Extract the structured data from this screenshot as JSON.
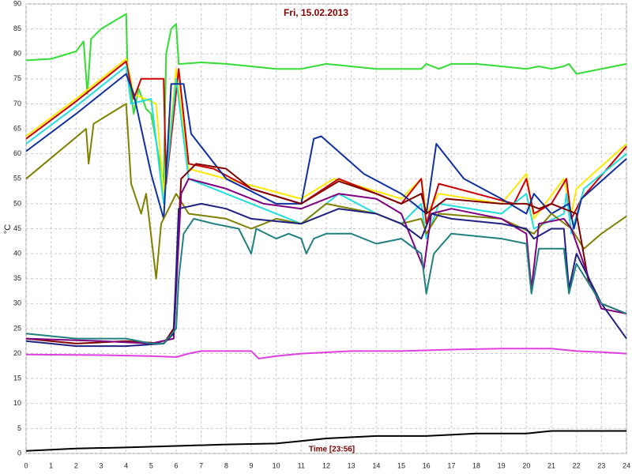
{
  "chart_data": {
    "type": "line",
    "title": "Fri, 15.02.2013",
    "x_label": "Time [23:56]",
    "y_label": "°C",
    "xlim": [
      0,
      24
    ],
    "ylim": [
      0,
      90
    ],
    "xticks": [
      0,
      1,
      2,
      3,
      4,
      5,
      6,
      7,
      8,
      9,
      10,
      11,
      12,
      13,
      14,
      15,
      16,
      17,
      18,
      19,
      20,
      21,
      22,
      23,
      24
    ],
    "yticks": [
      0,
      5,
      10,
      15,
      20,
      25,
      30,
      35,
      40,
      45,
      50,
      55,
      60,
      65,
      70,
      75,
      80,
      85,
      90
    ],
    "grid": true,
    "series": [
      {
        "color": "#33dd33",
        "x": [
          0,
          1,
          2,
          2.3,
          2.45,
          2.6,
          3,
          4,
          4.05,
          4.3,
          4.5,
          4.8,
          5,
          5.5,
          5.6,
          5.8,
          6,
          6.1,
          6.2,
          7,
          8,
          9,
          10,
          11,
          12,
          13,
          14,
          15,
          15.8,
          16,
          16.5,
          17,
          18,
          19,
          20,
          20.5,
          21,
          21.5,
          21.7,
          22,
          23,
          24
        ],
        "values": [
          78.7,
          79,
          80.5,
          82.5,
          72,
          83,
          85,
          88,
          78,
          68,
          73,
          69,
          68,
          54,
          80,
          85,
          86,
          78,
          78,
          78.3,
          78,
          77.5,
          77,
          77,
          78,
          77.5,
          77,
          77,
          77,
          78,
          77,
          78,
          78,
          77.5,
          77,
          77.5,
          77,
          77.5,
          78,
          76,
          77,
          78
        ]
      },
      {
        "color": "#ffe800",
        "x": [
          0,
          2,
          4,
          4.3,
          5.2,
          5.5,
          6,
          6.5,
          8,
          11,
          12.3,
          15,
          15.8,
          16,
          16.5,
          19,
          20,
          20.3,
          21.5,
          21.8,
          22,
          24
        ],
        "values": [
          63.5,
          71,
          79,
          72,
          70,
          52,
          77,
          57,
          55,
          51,
          55,
          51,
          55,
          48,
          52,
          50,
          56,
          47,
          55,
          48,
          53,
          62
        ]
      },
      {
        "color": "#cc0000",
        "x": [
          0,
          2,
          4,
          4.3,
          4.6,
          5.5,
          5.6,
          6.1,
          6.5,
          7.5,
          9,
          11,
          12.5,
          14,
          15,
          15.8,
          16,
          16.5,
          18,
          19.5,
          20,
          20.3,
          21,
          21.6,
          21.8,
          22.2,
          24
        ],
        "values": [
          63,
          70.5,
          78.5,
          71,
          75,
          75,
          54,
          77,
          58,
          57,
          53,
          50,
          55,
          52,
          50,
          55,
          46,
          54,
          52,
          50,
          55,
          48,
          50,
          55,
          47,
          51,
          61.5
        ]
      },
      {
        "color": "#22dddd",
        "x": [
          0,
          2,
          4,
          4.2,
          5,
          5.5,
          6,
          6.5,
          7.5,
          9.5,
          11,
          12.5,
          14,
          15,
          15.8,
          16,
          16.5,
          19,
          20,
          20.3,
          21.5,
          21.6,
          21.8,
          22.3,
          24
        ],
        "values": [
          62,
          69.5,
          77.5,
          70,
          71,
          50,
          75,
          55,
          53,
          49,
          46,
          52,
          48,
          46,
          50,
          43,
          50,
          48,
          52,
          45,
          48,
          52,
          44,
          53,
          60
        ]
      },
      {
        "color": "#1030a0",
        "x": [
          0,
          2,
          4,
          4.3,
          5,
          5.5,
          5.8,
          6.3,
          6.6,
          8,
          10,
          11,
          11.5,
          11.8,
          13.5,
          15,
          16,
          16.4,
          17.5,
          19,
          20,
          20.3,
          21,
          21.7,
          21.9,
          22.2,
          24
        ],
        "values": [
          60.5,
          68,
          76,
          72,
          56,
          47,
          74,
          74,
          64,
          55,
          50,
          50,
          63,
          63.5,
          56,
          52,
          48,
          62,
          55,
          51,
          48,
          52,
          48,
          50,
          45,
          51,
          59
        ]
      },
      {
        "color": "#808000",
        "x": [
          0,
          2.4,
          2.5,
          2.7,
          4,
          4.2,
          4.6,
          4.8,
          5.2,
          5.4,
          6,
          6.5,
          8,
          9,
          10,
          11,
          12,
          14,
          15,
          15.8,
          16,
          16.5,
          19,
          20.3,
          21,
          21.8,
          22.3,
          23,
          24
        ],
        "values": [
          55,
          65,
          58,
          66,
          70,
          54,
          48,
          52,
          35,
          46,
          52,
          48,
          47,
          45,
          47,
          46,
          50,
          48,
          46,
          47,
          44,
          48,
          47,
          44,
          48,
          45,
          41,
          44,
          47.5
        ]
      },
      {
        "color": "#800000",
        "x": [
          0,
          2,
          4,
          5.5,
          5.9,
          6.2,
          6.8,
          8,
          9,
          11,
          12.5,
          14,
          15,
          15.8,
          16,
          16.8,
          19,
          20,
          20.5,
          21,
          22,
          22.5,
          23,
          24
        ],
        "values": [
          23,
          22,
          22.5,
          22,
          25,
          55,
          58,
          57,
          53,
          50,
          54.5,
          52,
          50,
          52,
          48,
          51,
          50,
          50,
          49,
          50,
          48,
          34,
          30,
          28
        ]
      },
      {
        "color": "#800080",
        "x": [
          0,
          3,
          5,
          5.9,
          6.2,
          6.5,
          8,
          9.5,
          11,
          12.5,
          14,
          15,
          15.9,
          16.2,
          17,
          19,
          20,
          20.2,
          20.5,
          21.5,
          21.8,
          22.5,
          23,
          24
        ],
        "values": [
          23,
          22.5,
          22,
          23,
          52,
          55,
          53,
          50,
          49,
          52,
          51,
          48,
          37,
          48,
          49,
          47,
          44,
          33,
          46,
          47,
          45,
          35,
          29,
          28
        ]
      },
      {
        "color": "#202080",
        "x": [
          0,
          2,
          4,
          5.5,
          5.9,
          6.1,
          7,
          8,
          9,
          11,
          12.5,
          14,
          15,
          15.8,
          16.2,
          17,
          19,
          20,
          20.3,
          21,
          21.5,
          21.7,
          22,
          23,
          24
        ],
        "values": [
          22.5,
          21.5,
          21.5,
          22,
          24,
          49,
          50,
          49,
          47,
          46,
          49,
          48,
          46,
          43,
          48,
          47,
          46,
          45,
          43,
          45,
          45,
          33,
          40,
          30,
          23
        ]
      },
      {
        "color": "#208080",
        "x": [
          0,
          2,
          4,
          5,
          5.5,
          6,
          6.1,
          6.3,
          6.7,
          7.5,
          8.5,
          9,
          9.2,
          10,
          10.5,
          11,
          11.2,
          11.5,
          12,
          13,
          14,
          15,
          15.8,
          16,
          16.3,
          17,
          19,
          20,
          20.2,
          20.5,
          21.5,
          21.7,
          22,
          23,
          24
        ],
        "values": [
          24,
          23,
          23,
          22,
          22,
          25,
          35,
          44,
          47,
          46,
          45,
          40,
          45,
          43,
          44,
          43,
          40,
          43,
          44,
          44,
          42,
          43,
          40,
          32,
          40,
          44,
          43,
          42,
          32,
          41,
          41,
          32,
          38,
          30,
          28
        ]
      },
      {
        "color": "#e040e0",
        "x": [
          0,
          3,
          5,
          6,
          6.5,
          7,
          9,
          9.3,
          10,
          11,
          13,
          15,
          17,
          19,
          21,
          22,
          23,
          24
        ],
        "values": [
          19.8,
          19.7,
          19.5,
          19.3,
          20,
          20.5,
          20.5,
          19,
          19.5,
          20,
          20.5,
          20.5,
          20.8,
          21,
          21,
          20.5,
          20.3,
          20
        ]
      },
      {
        "color": "#000000",
        "x": [
          0,
          2,
          4,
          6,
          8,
          10,
          11,
          12,
          14,
          16,
          18,
          20,
          21,
          22,
          24
        ],
        "values": [
          0.5,
          1,
          1.2,
          1.5,
          1.8,
          2,
          2.5,
          3,
          3.5,
          3.5,
          4,
          4,
          4.5,
          4.5,
          4.5
        ]
      }
    ]
  }
}
